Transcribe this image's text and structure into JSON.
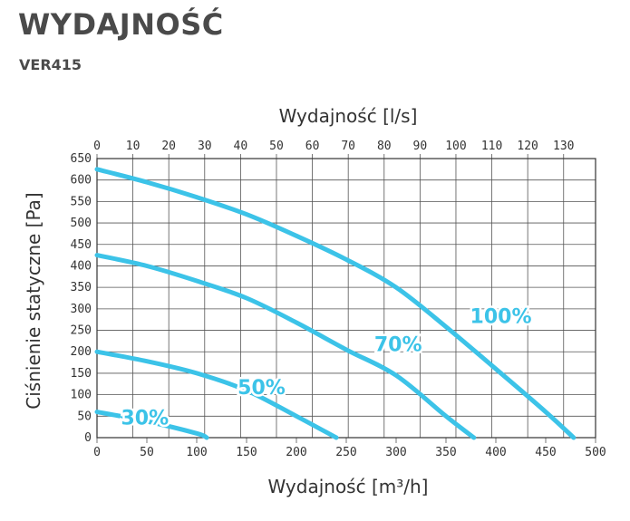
{
  "header": {
    "title": "WYDAJNOŚĆ",
    "subtitle": "VER415"
  },
  "chart_data": {
    "type": "line",
    "title": "WYDAJNOŚĆ",
    "subtitle": "VER415",
    "xlabel": "Wydajność [m³/h]",
    "x2label": "Wydajność [l/s]",
    "ylabel": "Ciśnienie statyczne [Pa]",
    "xlim": [
      0,
      500
    ],
    "x2lim": [
      0,
      138.9
    ],
    "ylim": [
      0,
      650
    ],
    "x_ticks": [
      "0",
      "50",
      "100",
      "150",
      "200",
      "250",
      "300",
      "350",
      "400",
      "450",
      "500"
    ],
    "x2_ticks": [
      "0",
      "10",
      "20",
      "30",
      "40",
      "50",
      "60",
      "70",
      "80",
      "90",
      "100",
      "110",
      "120",
      "130"
    ],
    "y_ticks": [
      "0",
      "50",
      "100",
      "150",
      "200",
      "250",
      "300",
      "350",
      "400",
      "450",
      "500",
      "550",
      "600",
      "650"
    ],
    "grid": true,
    "line_color": "#3cc3e8",
    "series": [
      {
        "name": "100%",
        "x": [
          0,
          50,
          100,
          150,
          200,
          250,
          300,
          350,
          400,
          450,
          478
        ],
        "y": [
          625,
          595,
          560,
          520,
          470,
          415,
          350,
          258,
          160,
          60,
          0
        ]
      },
      {
        "name": "70%",
        "x": [
          0,
          50,
          100,
          150,
          200,
          250,
          300,
          350,
          378
        ],
        "y": [
          425,
          400,
          365,
          325,
          268,
          205,
          145,
          50,
          0
        ]
      },
      {
        "name": "50%",
        "x": [
          0,
          50,
          100,
          150,
          200,
          240
        ],
        "y": [
          200,
          178,
          150,
          110,
          50,
          0
        ]
      },
      {
        "name": "30%",
        "x": [
          0,
          50,
          100,
          110
        ],
        "y": [
          60,
          38,
          10,
          0
        ]
      }
    ]
  }
}
